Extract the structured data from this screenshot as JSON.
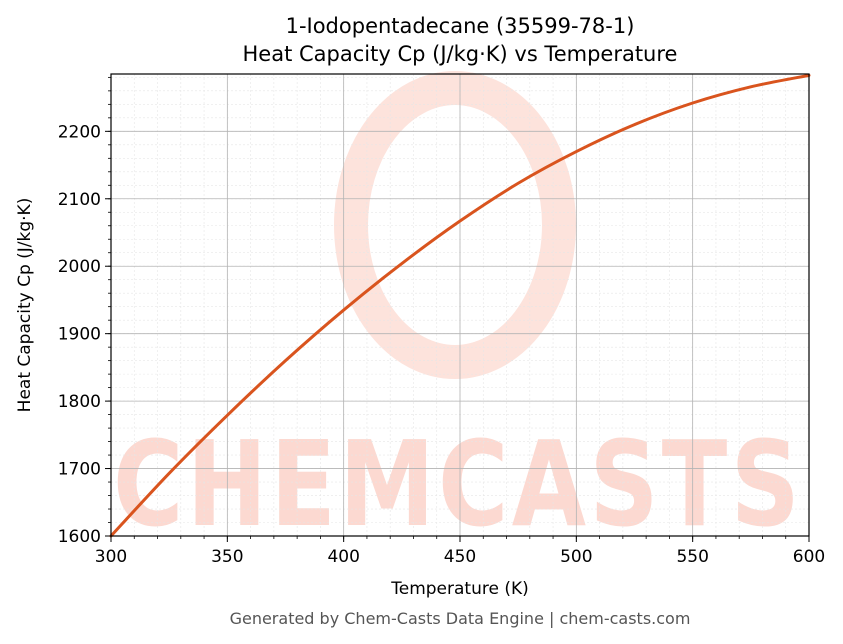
{
  "chart_data": {
    "type": "line",
    "title": "1-Iodopentadecane (35599-78-1)",
    "subtitle": "Heat Capacity Cp (J/kg·K) vs Temperature",
    "xlabel": "Temperature (K)",
    "ylabel": "Heat Capacity Cp (J/kg·K)",
    "xlim": [
      300,
      600
    ],
    "ylim": [
      1600,
      2285
    ],
    "xticks": [
      300,
      350,
      400,
      450,
      500,
      550,
      600
    ],
    "yticks": [
      1600,
      1700,
      1800,
      1900,
      2000,
      2100,
      2200
    ],
    "grid": true,
    "legend": "none",
    "series": [
      {
        "color": "#d9541e",
        "x": [
          300,
          325,
          350,
          375,
          400,
          425,
          450,
          475,
          500,
          525,
          550,
          575,
          600
        ],
        "y": [
          1600,
          1693,
          1779,
          1860,
          1935,
          2004,
          2067,
          2123,
          2170,
          2210,
          2242,
          2266,
          2283
        ]
      }
    ],
    "watermark": "CHEMCASTS",
    "footer": "Generated by Chem-Casts Data Engine | chem-casts.com"
  }
}
